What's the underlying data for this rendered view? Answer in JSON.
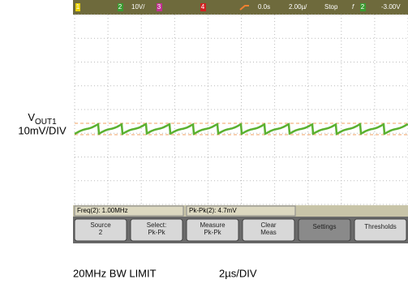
{
  "left_label": {
    "name": "V",
    "subscript": "OUT1",
    "scale": "10mV/DIV"
  },
  "top_bar": {
    "ch1": "1",
    "ch2": "2",
    "ch2_scale": "10V/",
    "ch3": "3",
    "ch4": "4",
    "delay": "0.0s",
    "timebase": "2.00µ/",
    "mode": "Stop",
    "trigger": "f",
    "trigger_source": "2",
    "trigger_level": "-3.00V"
  },
  "status": [
    "Freq(2): 1.00MHz",
    "Pk-Pk(2): 4.7mV"
  ],
  "softkeys": [
    [
      "Source",
      "2"
    ],
    [
      "Select:",
      "Pk-Pk"
    ],
    [
      "Measure",
      "Pk-Pk"
    ],
    [
      "Clear",
      "Meas"
    ],
    [
      "Settings"
    ],
    [
      "Thresholds"
    ]
  ],
  "footer": [
    "20MHz BW LIMIT",
    "2µs/DIV"
  ]
}
